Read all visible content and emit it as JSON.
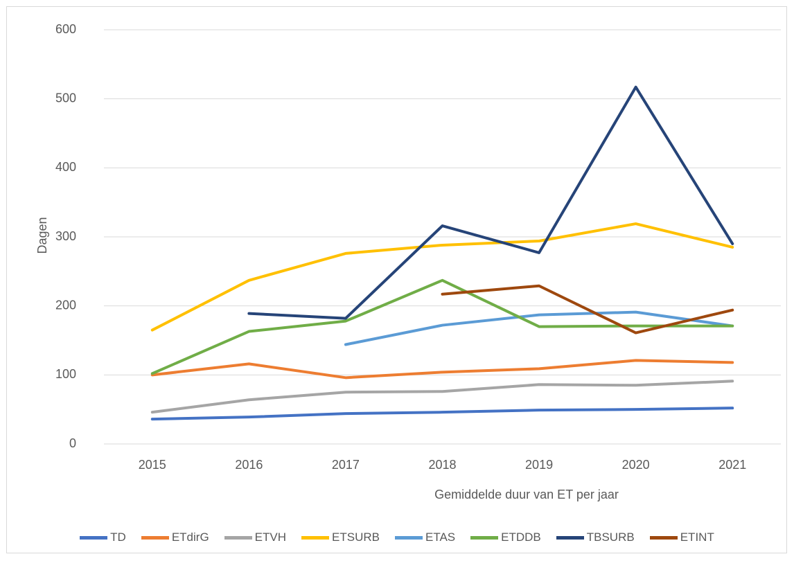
{
  "chart_data": {
    "type": "line",
    "xlabel": "Gemiddelde duur van ET per jaar",
    "ylabel": "Dagen",
    "categories": [
      "2015",
      "2016",
      "2017",
      "2018",
      "2019",
      "2020",
      "2021"
    ],
    "ylim": [
      0,
      600
    ],
    "yticks": [
      0,
      100,
      200,
      300,
      400,
      500,
      600
    ],
    "grid": true,
    "legend": "bottom",
    "series": [
      {
        "name": "TD",
        "color": "#4472c4",
        "values": [
          36,
          39,
          44,
          46,
          49,
          50,
          52
        ]
      },
      {
        "name": "ETdirG",
        "color": "#ed7d31",
        "values": [
          100,
          116,
          96,
          104,
          109,
          121,
          118
        ]
      },
      {
        "name": "ETVH",
        "color": "#a5a5a5",
        "values": [
          46,
          64,
          75,
          76,
          86,
          85,
          91
        ]
      },
      {
        "name": "ETSURB",
        "color": "#ffc000",
        "values": [
          165,
          237,
          276,
          288,
          294,
          319,
          285
        ]
      },
      {
        "name": "ETAS",
        "color": "#5b9bd5",
        "values": [
          null,
          null,
          144,
          172,
          187,
          191,
          171
        ]
      },
      {
        "name": "ETDDB",
        "color": "#70ad47",
        "values": [
          102,
          163,
          178,
          237,
          170,
          171,
          171
        ]
      },
      {
        "name": "TBSURB",
        "color": "#264478",
        "values": [
          null,
          189,
          182,
          316,
          277,
          517,
          290
        ]
      },
      {
        "name": "ETINT",
        "color": "#9e480e",
        "values": [
          null,
          null,
          null,
          217,
          229,
          161,
          194
        ]
      }
    ]
  }
}
